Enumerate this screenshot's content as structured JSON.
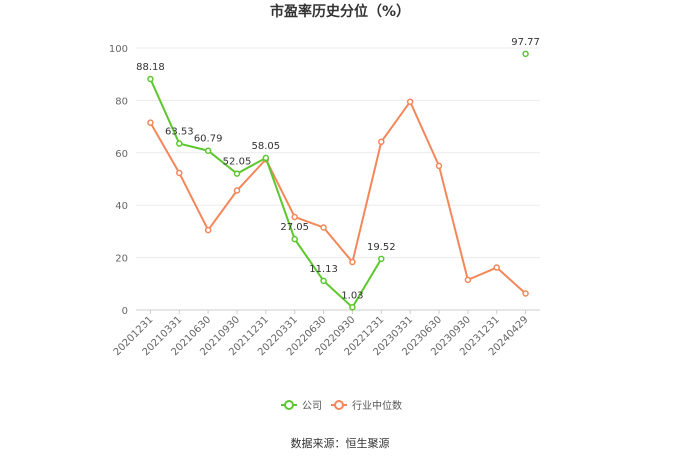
{
  "chart_data": {
    "type": "line",
    "title": "市盈率历史分位（%）",
    "source": "数据来源：恒生聚源",
    "categories": [
      "20201231",
      "20210331",
      "20210630",
      "20210930",
      "20211231",
      "20220331",
      "20220630",
      "20220930",
      "20221231",
      "20230331",
      "20230630",
      "20230930",
      "20231231",
      "20240429"
    ],
    "ylim": [
      0,
      100
    ],
    "yticks": [
      0,
      20,
      40,
      60,
      80,
      100
    ],
    "grid": true,
    "legend_position": "bottom",
    "series": [
      {
        "name": "公司",
        "color": "#5cc72e",
        "values": [
          88.18,
          63.53,
          60.79,
          52.05,
          58.05,
          27.05,
          11.13,
          1.03,
          19.52,
          null,
          null,
          null,
          null,
          97.77
        ],
        "labels": [
          "88.18",
          "63.53",
          "60.79",
          "52.05",
          "58.05",
          "27.05",
          "11.13",
          "1.03",
          "19.52",
          "",
          "",
          "",
          "",
          "97.77"
        ]
      },
      {
        "name": "行业中位数",
        "color": "#f4875a",
        "values": [
          71.5,
          52.3,
          30.5,
          45.6,
          57.5,
          35.5,
          31.5,
          18.3,
          64.2,
          79.5,
          55.0,
          11.5,
          16.2,
          6.3
        ]
      }
    ]
  }
}
